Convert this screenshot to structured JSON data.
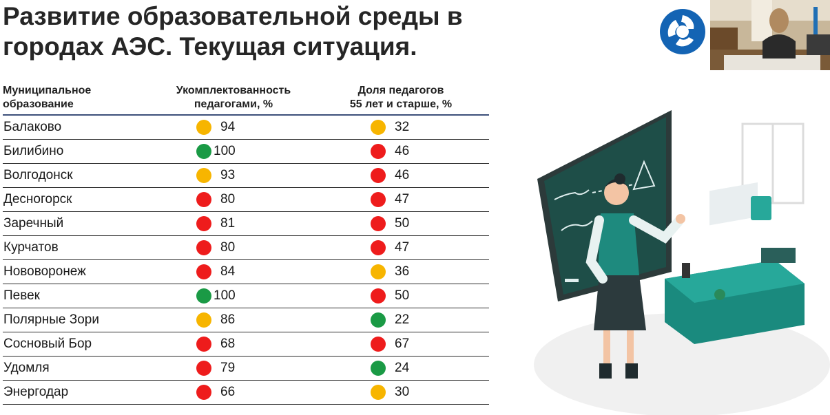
{
  "slide": {
    "title_line1": "Развитие образовательной среды в",
    "title_line2": "городах АЭС. Текущая ситуация."
  },
  "colors": {
    "red": "#ee1c1c",
    "yellow": "#f7b500",
    "green": "#1a9a45",
    "rule": "#3c4f7a"
  },
  "table": {
    "headers": {
      "city_1": "Муниципальное",
      "city_2": "образование",
      "staff_1": "Укомплектованность",
      "staff_2": "педагогами, %",
      "age_1": "Доля педагогов",
      "age_2": "55 лет и старше, %"
    },
    "rows": [
      {
        "city": "Балаково",
        "staff": "94",
        "staff_status": "yellow",
        "age": "32",
        "age_status": "yellow"
      },
      {
        "city": "Билибино",
        "staff": "100",
        "staff_status": "green",
        "age": "46",
        "age_status": "red"
      },
      {
        "city": "Волгодонск",
        "staff": "93",
        "staff_status": "yellow",
        "age": "46",
        "age_status": "red"
      },
      {
        "city": "Десногорск",
        "staff": "80",
        "staff_status": "red",
        "age": "47",
        "age_status": "red"
      },
      {
        "city": "Заречный",
        "staff": "81",
        "staff_status": "red",
        "age": "50",
        "age_status": "red"
      },
      {
        "city": "Курчатов",
        "staff": "80",
        "staff_status": "red",
        "age": "47",
        "age_status": "red"
      },
      {
        "city": "Нововоронеж",
        "staff": "84",
        "staff_status": "red",
        "age": "36",
        "age_status": "yellow"
      },
      {
        "city": "Певек",
        "staff": "100",
        "staff_status": "green",
        "age": "50",
        "age_status": "red"
      },
      {
        "city": "Полярные Зори",
        "staff": "86",
        "staff_status": "yellow",
        "age": "22",
        "age_status": "green"
      },
      {
        "city": "Сосновый Бор",
        "staff": "68",
        "staff_status": "red",
        "age": "67",
        "age_status": "red"
      },
      {
        "city": "Удомля",
        "staff": "79",
        "staff_status": "red",
        "age": "24",
        "age_status": "green"
      },
      {
        "city": "Энергодар",
        "staff": "66",
        "staff_status": "red",
        "age": "30",
        "age_status": "yellow"
      }
    ]
  },
  "icons": {
    "logo": "rosatom-logo-icon",
    "illustration": "teacher-illustration",
    "video": "video-participant-thumbnail"
  }
}
